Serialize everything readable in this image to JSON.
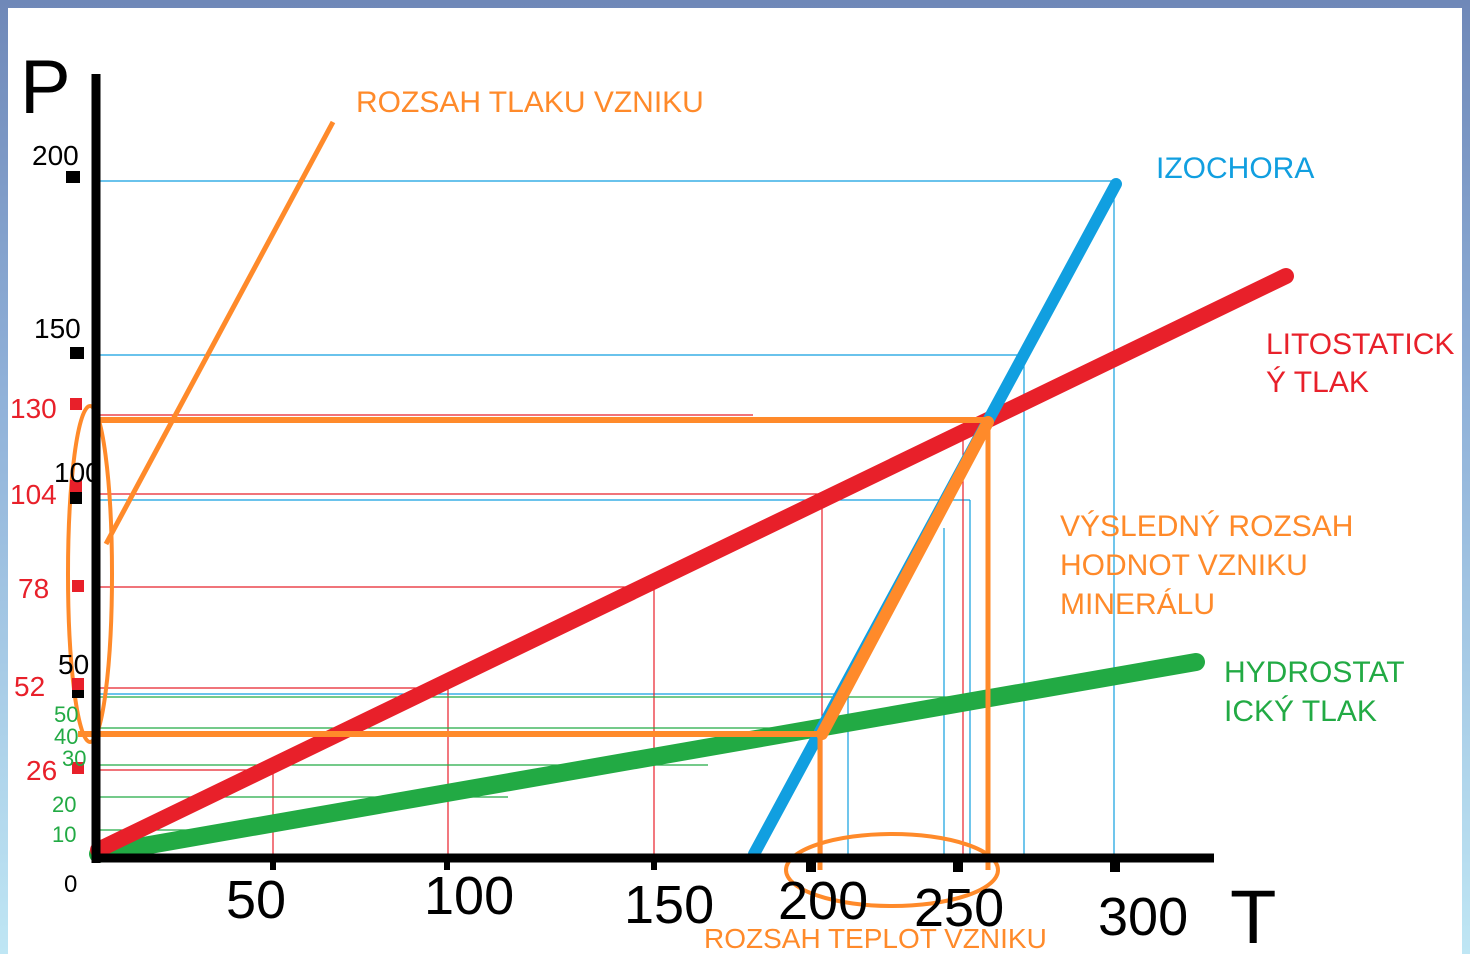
{
  "axes": {
    "y_symbol": "P",
    "x_symbol": "T",
    "origin_label": "0",
    "x_ticks": [
      "50",
      "100",
      "150",
      "200",
      "250",
      "300"
    ],
    "y_ticks_black": [
      "50",
      "100",
      "150",
      "200"
    ],
    "y_ticks_red": [
      "26",
      "52",
      "78",
      "104",
      "130"
    ],
    "y_ticks_green": [
      "10",
      "20",
      "30",
      "40",
      "50"
    ]
  },
  "labels": {
    "pressure_range": "ROZSAH TLAKU VZNIKU",
    "isochore": "IZOCHORA",
    "lithostatic_1": "LITOSTATICK",
    "lithostatic_2": "Ý TLAK",
    "result_1": "VÝSLEDNÝ ROZSAH",
    "result_2": "HODNOT VZNIKU",
    "result_3": "MINERÁLU",
    "hydrostatic_1": "HYDROSTAT",
    "hydrostatic_2": "ICKÝ TLAK",
    "temperature_range": "ROZSAH TEPLOT VZNIKU"
  },
  "colors": {
    "axis": "#000000",
    "isochore": "#119fe0",
    "lithostatic": "#e8202a",
    "hydrostatic": "#22aa44",
    "highlight": "#ff8a2a"
  },
  "chart_data": {
    "type": "line",
    "series": [
      {
        "name": "IZOCHORA",
        "x": [
          178,
          300
        ],
        "y": [
          0,
          200
        ]
      },
      {
        "name": "LITOSTATICKÝ TLAK",
        "x": [
          0,
          330
        ],
        "y": [
          0,
          173
        ]
      },
      {
        "name": "HYDROSTATICKÝ TLAK",
        "x": [
          0,
          320
        ],
        "y": [
          0,
          57
        ]
      }
    ],
    "xlim": [
      0,
      320
    ],
    "ylim": [
      0,
      200
    ]
  }
}
